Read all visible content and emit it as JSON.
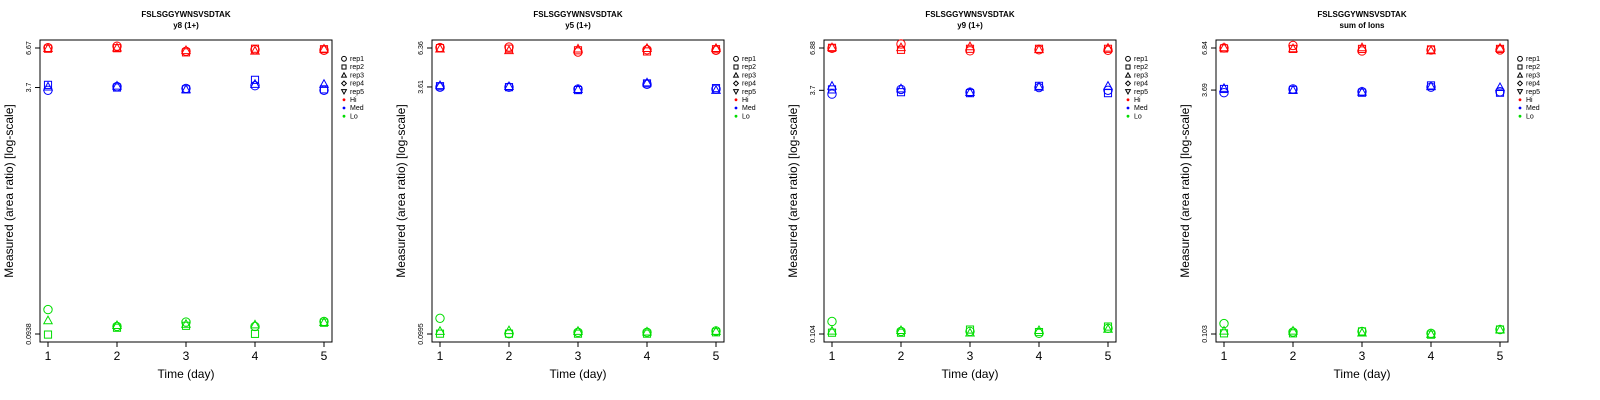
{
  "x_axis_label": "Time (day)",
  "y_axis_label": "Measured (area ratio) [log-scale]",
  "legend": [
    {
      "label": "rep1",
      "symbol": "circle"
    },
    {
      "label": "rep2",
      "symbol": "square"
    },
    {
      "label": "rep3",
      "symbol": "triangle-up"
    },
    {
      "label": "rep4",
      "symbol": "diamond"
    },
    {
      "label": "rep5",
      "symbol": "triangle-down"
    },
    {
      "label": "Hi",
      "symbol": "dot",
      "color": "#ff0000"
    },
    {
      "label": "Med",
      "symbol": "dot",
      "color": "#0000ff"
    },
    {
      "label": "Lo",
      "symbol": "dot",
      "color": "#00dd00"
    }
  ],
  "colors": {
    "Hi": "#ff0000",
    "Med": "#0000ff",
    "Lo": "#00dd00"
  },
  "chart_data": [
    {
      "type": "scatter",
      "title": "FSLSGGYWNSVSDTAK",
      "subtitle": "y8 (1+)",
      "xlabel": "Time (day)",
      "ylabel": "Measured (area ratio) [log-scale]",
      "x": [
        1,
        2,
        3,
        4,
        5
      ],
      "y_scale": "log",
      "y_ticks": [
        "0.0938",
        "3.7",
        "6.67"
      ],
      "series": [
        {
          "name": "Hi",
          "replicates": {
            "rep1": [
              6.7,
              6.85,
              6.35,
              6.5,
              6.45
            ],
            "rep2": [
              6.6,
              6.65,
              6.25,
              6.6,
              6.55
            ],
            "rep3": [
              6.65,
              6.7,
              6.45,
              6.4,
              6.6
            ]
          }
        },
        {
          "name": "Med",
          "replicates": {
            "rep1": [
              3.55,
              3.75,
              3.65,
              3.8,
              3.55
            ],
            "rep2": [
              3.85,
              3.7,
              3.6,
              4.15,
              3.6
            ],
            "rep3": [
              3.75,
              3.8,
              3.6,
              3.9,
              3.9
            ]
          }
        },
        {
          "name": "Lo",
          "replicates": {
            "rep1": [
              0.135,
              0.105,
              0.112,
              0.105,
              0.113
            ],
            "rep2": [
              0.093,
              0.103,
              0.106,
              0.094,
              0.111
            ],
            "rep3": [
              0.115,
              0.107,
              0.109,
              0.108,
              0.112
            ]
          }
        }
      ]
    },
    {
      "type": "scatter",
      "title": "FSLSGGYWNSVSDTAK",
      "subtitle": "y5 (1+)",
      "xlabel": "Time (day)",
      "ylabel": "Measured (area ratio) [log-scale]",
      "x": [
        1,
        2,
        3,
        4,
        5
      ],
      "y_scale": "log",
      "y_ticks": [
        "0.0995",
        "3.61",
        "6.36"
      ],
      "series": [
        {
          "name": "Hi",
          "replicates": {
            "rep1": [
              6.4,
              6.45,
              6.0,
              6.2,
              6.15
            ],
            "rep2": [
              6.35,
              6.3,
              6.15,
              6.05,
              6.25
            ],
            "rep3": [
              6.3,
              6.15,
              6.3,
              6.35,
              6.35
            ]
          }
        },
        {
          "name": "Med",
          "replicates": {
            "rep1": [
              3.6,
              3.6,
              3.5,
              3.75,
              3.5
            ],
            "rep2": [
              3.65,
              3.6,
              3.45,
              3.8,
              3.55
            ],
            "rep3": [
              3.7,
              3.65,
              3.5,
              3.85,
              3.45
            ]
          }
        },
        {
          "name": "Lo",
          "replicates": {
            "rep1": [
              0.125,
              0.1,
              0.102,
              0.102,
              0.104
            ],
            "rep2": [
              0.1,
              0.1,
              0.1,
              0.1,
              0.102
            ],
            "rep3": [
              0.104,
              0.105,
              0.104,
              0.103,
              0.104
            ]
          }
        }
      ]
    },
    {
      "type": "scatter",
      "title": "FSLSGGYWNSVSDTAK",
      "subtitle": "y9 (1+)",
      "xlabel": "Time (day)",
      "ylabel": "Measured (area ratio) [log-scale]",
      "x": [
        1,
        2,
        3,
        4,
        5
      ],
      "y_scale": "log",
      "y_ticks": [
        "0.104",
        "3.7",
        "6.88"
      ],
      "series": [
        {
          "name": "Hi",
          "replicates": {
            "rep1": [
              6.85,
              7.3,
              6.6,
              6.7,
              6.65
            ],
            "rep2": [
              6.9,
              6.7,
              6.8,
              6.8,
              6.8
            ],
            "rep3": [
              6.95,
              6.95,
              7.05,
              6.75,
              6.9
            ]
          }
        },
        {
          "name": "Med",
          "replicates": {
            "rep1": [
              3.5,
              3.75,
              3.6,
              3.85,
              3.7
            ],
            "rep2": [
              3.75,
              3.6,
              3.55,
              3.95,
              3.55
            ],
            "rep3": [
              3.95,
              3.8,
              3.6,
              3.9,
              3.95
            ]
          }
        },
        {
          "name": "Lo",
          "replicates": {
            "rep1": [
              0.125,
              0.108,
              0.108,
              0.105,
              0.113
            ],
            "rep2": [
              0.106,
              0.106,
              0.111,
              0.107,
              0.116
            ],
            "rep3": [
              0.109,
              0.11,
              0.106,
              0.11,
              0.112
            ]
          }
        }
      ]
    },
    {
      "type": "scatter",
      "title": "FSLSGGYWNSVSDTAK",
      "subtitle": "sum of Ions",
      "xlabel": "Time (day)",
      "ylabel": "Measured (area ratio) [log-scale]",
      "x": [
        1,
        2,
        3,
        4,
        5
      ],
      "y_scale": "log",
      "y_ticks": [
        "0.103",
        "3.69",
        "6.84"
      ],
      "series": [
        {
          "name": "Hi",
          "replicates": {
            "rep1": [
              6.85,
              7.1,
              6.55,
              6.65,
              6.65
            ],
            "rep2": [
              6.8,
              6.75,
              6.75,
              6.7,
              6.75
            ],
            "rep3": [
              6.9,
              6.8,
              6.9,
              6.6,
              6.85
            ]
          }
        },
        {
          "name": "Med",
          "replicates": {
            "rep1": [
              3.55,
              3.75,
              3.6,
              3.85,
              3.6
            ],
            "rep2": [
              3.75,
              3.7,
              3.55,
              3.95,
              3.55
            ],
            "rep3": [
              3.8,
              3.7,
              3.6,
              3.9,
              3.85
            ]
          }
        },
        {
          "name": "Lo",
          "replicates": {
            "rep1": [
              0.12,
              0.106,
              0.107,
              0.104,
              0.11
            ],
            "rep2": [
              0.104,
              0.104,
              0.107,
              0.102,
              0.11
            ],
            "rep3": [
              0.108,
              0.108,
              0.105,
              0.103,
              0.11
            ]
          }
        }
      ]
    }
  ]
}
